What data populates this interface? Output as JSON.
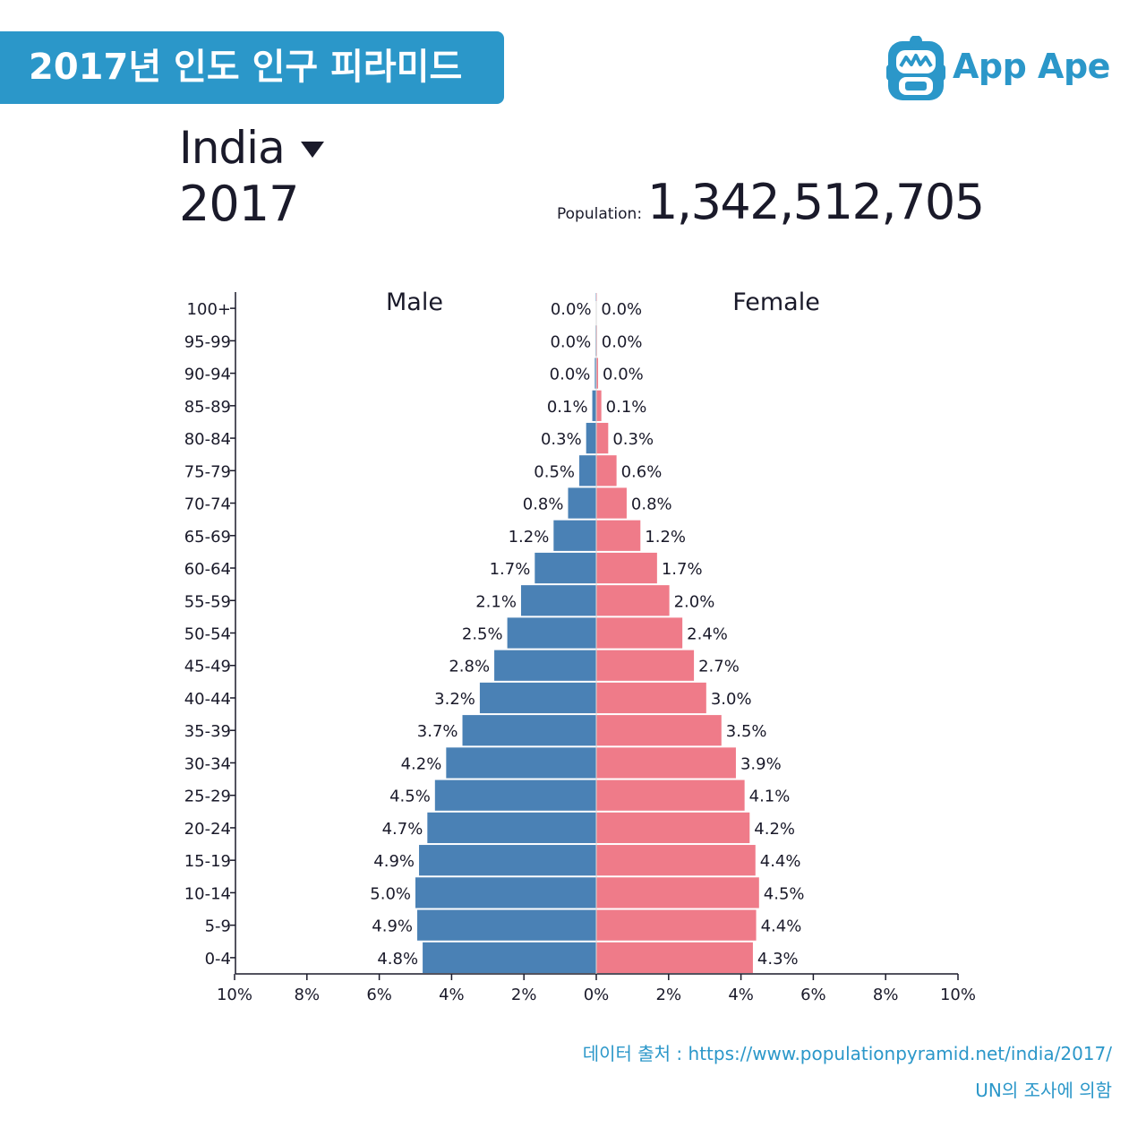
{
  "banner": {
    "title": "2017년 인도 인구 피라미드"
  },
  "logo": {
    "text": "App Ape",
    "icon": "ape-face-icon",
    "color": "#2b97c9"
  },
  "selector": {
    "country": "India",
    "icon": "caret-down-icon"
  },
  "year": "2017",
  "population": {
    "label": "Population:",
    "value": "1,342,512,705"
  },
  "source": {
    "text": "데이터 출처 : https://www.populationpyramid.net/india/2017/",
    "note": "UN의 조사에 의함"
  },
  "colors": {
    "male": "#4a81b5",
    "female": "#ef7b89",
    "accent": "#2b97c9"
  },
  "chart_data": {
    "type": "bar",
    "orientation": "horizontal",
    "categories": [
      "100+",
      "95-99",
      "90-94",
      "85-89",
      "80-84",
      "75-79",
      "70-74",
      "65-69",
      "60-64",
      "55-59",
      "50-54",
      "45-49",
      "40-44",
      "35-39",
      "30-34",
      "25-29",
      "20-24",
      "15-19",
      "10-14",
      "5-9",
      "0-4"
    ],
    "series": [
      {
        "name": "Male",
        "values": [
          0.0,
          0.0,
          0.0,
          0.1,
          0.3,
          0.5,
          0.8,
          1.2,
          1.7,
          2.1,
          2.5,
          2.8,
          3.2,
          3.7,
          4.2,
          4.5,
          4.7,
          4.9,
          5.0,
          4.9,
          4.8
        ],
        "labels": [
          "0.0%",
          "0.0%",
          "0.0%",
          "0.1%",
          "0.3%",
          "0.5%",
          "0.8%",
          "1.2%",
          "1.7%",
          "2.1%",
          "2.5%",
          "2.8%",
          "3.2%",
          "3.7%",
          "4.2%",
          "4.5%",
          "4.7%",
          "4.9%",
          "5.0%",
          "4.9%",
          "4.8%"
        ]
      },
      {
        "name": "Female",
        "values": [
          0.0,
          0.0,
          0.0,
          0.1,
          0.3,
          0.6,
          0.8,
          1.2,
          1.7,
          2.0,
          2.4,
          2.7,
          3.0,
          3.5,
          3.9,
          4.1,
          4.2,
          4.4,
          4.5,
          4.4,
          4.3
        ],
        "labels": [
          "0.0%",
          "0.0%",
          "0.0%",
          "0.1%",
          "0.3%",
          "0.6%",
          "0.8%",
          "1.2%",
          "1.7%",
          "2.0%",
          "2.4%",
          "2.7%",
          "3.0%",
          "3.5%",
          "3.9%",
          "4.1%",
          "4.2%",
          "4.4%",
          "4.5%",
          "4.4%",
          "4.3%"
        ]
      }
    ],
    "draw_values": [
      0.01,
      0.02,
      0.04,
      0.11,
      0.28,
      0.47,
      0.78,
      1.18,
      1.7,
      2.08,
      2.46,
      2.82,
      3.22,
      3.7,
      4.15,
      4.46,
      4.67,
      4.9,
      5.0,
      4.95,
      4.8
    ],
    "draw_values_female": [
      0.01,
      0.02,
      0.05,
      0.14,
      0.33,
      0.56,
      0.84,
      1.22,
      1.68,
      2.02,
      2.38,
      2.7,
      3.04,
      3.46,
      3.86,
      4.1,
      4.24,
      4.4,
      4.5,
      4.42,
      4.33
    ],
    "x_ticks": [
      "10%",
      "8%",
      "6%",
      "4%",
      "2%",
      "0%",
      "2%",
      "4%",
      "6%",
      "8%",
      "10%"
    ],
    "xlim": [
      -10,
      10
    ],
    "grid": false,
    "legend": "top"
  }
}
